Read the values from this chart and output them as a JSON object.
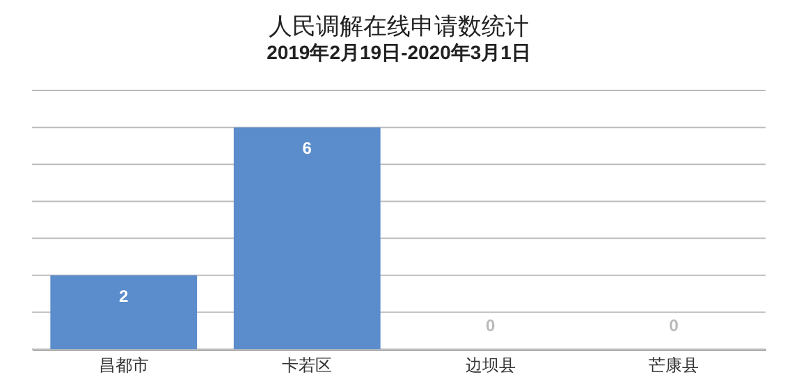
{
  "chart_data": {
    "type": "bar",
    "title": "人民调解在线申请数统计",
    "subtitle": "2019年2月19日-2020年3月1日",
    "categories": [
      "昌都市",
      "卡若区",
      "边坝县",
      "芒康县"
    ],
    "values": [
      2,
      6,
      0,
      0
    ],
    "color": "#5b8ccc",
    "ylim": [
      0,
      7
    ],
    "yticks": [
      {
        "value": 0,
        "label": null
      },
      {
        "value": 1,
        "label": null
      },
      {
        "value": 2,
        "label": null
      },
      {
        "value": 3,
        "label": null
      },
      {
        "value": 4,
        "label": null
      },
      {
        "value": 5,
        "label": null
      },
      {
        "value": 6,
        "label": null
      },
      {
        "value": 7,
        "label": null
      }
    ],
    "tick_labels": "x",
    "grid": "y",
    "data_labels": true
  }
}
